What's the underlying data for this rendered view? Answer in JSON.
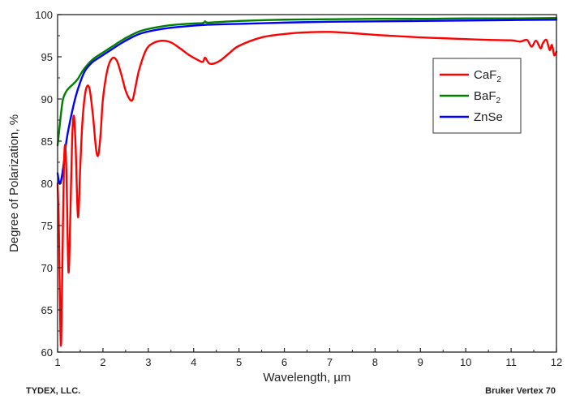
{
  "chart_data": {
    "type": "line",
    "xlabel": "Wavelength, µm",
    "ylabel": "Degree of Polarization, %",
    "xlim": [
      1,
      12
    ],
    "ylim": [
      60,
      100
    ],
    "xticks": [
      1,
      2,
      3,
      4,
      5,
      6,
      7,
      8,
      9,
      10,
      11,
      12
    ],
    "yticks": [
      60,
      65,
      70,
      75,
      80,
      85,
      90,
      95,
      100
    ],
    "grid": false,
    "legend_position": "right",
    "series": [
      {
        "name": "CaF₂",
        "legend_base": "CaF",
        "legend_sub": "2",
        "color": "#ff0000",
        "x": [
          1.0,
          1.03,
          1.06,
          1.08,
          1.11,
          1.14,
          1.17,
          1.2,
          1.24,
          1.28,
          1.32,
          1.36,
          1.4,
          1.45,
          1.5,
          1.55,
          1.62,
          1.7,
          1.78,
          1.85,
          1.9,
          1.95,
          2.0,
          2.1,
          2.2,
          2.3,
          2.4,
          2.5,
          2.6,
          2.66,
          2.72,
          2.8,
          2.95,
          3.1,
          3.3,
          3.5,
          3.7,
          3.9,
          4.1,
          4.2,
          4.25,
          4.3,
          4.35,
          4.45,
          4.6,
          4.8,
          5.0,
          5.5,
          6.0,
          6.5,
          7.0,
          7.5,
          8.0,
          8.5,
          9.0,
          9.5,
          10.0,
          10.5,
          11.0,
          11.2,
          11.35,
          11.45,
          11.55,
          11.65,
          11.7,
          11.78,
          11.85,
          11.9,
          11.95,
          12.0
        ],
        "y": [
          80.0,
          74.0,
          63.0,
          61.5,
          72.0,
          82.0,
          84.5,
          80.0,
          69.5,
          76.0,
          85.0,
          88.0,
          84.0,
          76.0,
          82.0,
          87.5,
          91.0,
          91.3,
          88.0,
          84.0,
          83.4,
          86.0,
          90.0,
          93.5,
          94.8,
          94.6,
          93.0,
          91.0,
          89.9,
          90.0,
          91.5,
          93.5,
          95.8,
          96.6,
          96.9,
          96.7,
          96.0,
          95.2,
          94.6,
          94.4,
          94.9,
          94.5,
          94.2,
          94.2,
          94.6,
          95.5,
          96.3,
          97.3,
          97.7,
          97.9,
          97.95,
          97.8,
          97.6,
          97.45,
          97.3,
          97.2,
          97.1,
          97.0,
          96.95,
          96.8,
          97.0,
          96.2,
          96.9,
          96.0,
          96.6,
          97.0,
          95.8,
          96.4,
          95.2,
          95.6
        ]
      },
      {
        "name": "BaF₂",
        "legend_base": "BaF",
        "legend_sub": "2",
        "color": "#008000",
        "x": [
          1.0,
          1.04,
          1.08,
          1.12,
          1.18,
          1.25,
          1.35,
          1.45,
          1.55,
          1.65,
          1.8,
          2.0,
          2.2,
          2.4,
          2.6,
          2.8,
          3.0,
          3.3,
          3.6,
          4.0,
          4.2,
          4.25,
          4.3,
          4.5,
          5.0,
          6.0,
          7.0,
          8.0,
          9.0,
          10.0,
          11.0,
          12.0
        ],
        "y": [
          84.5,
          86.5,
          88.5,
          90.0,
          90.8,
          91.3,
          91.8,
          92.4,
          93.3,
          94.0,
          94.8,
          95.5,
          96.2,
          96.9,
          97.5,
          98.0,
          98.3,
          98.6,
          98.8,
          98.95,
          99.0,
          99.2,
          99.05,
          99.1,
          99.25,
          99.4,
          99.45,
          99.5,
          99.5,
          99.55,
          99.55,
          99.6
        ]
      },
      {
        "name": "ZnSe",
        "legend_base": "ZnSe",
        "legend_sub": "",
        "color": "#0000ff",
        "x": [
          1.0,
          1.03,
          1.06,
          1.1,
          1.15,
          1.2,
          1.3,
          1.4,
          1.5,
          1.6,
          1.7,
          1.8,
          2.0,
          2.2,
          2.4,
          2.6,
          2.8,
          3.0,
          3.3,
          3.6,
          4.0,
          4.3,
          4.6,
          5.0,
          6.0,
          7.0,
          8.0,
          9.0,
          10.0,
          11.0,
          12.0
        ],
        "y": [
          81.2,
          80.2,
          80.0,
          81.0,
          83.0,
          85.2,
          88.0,
          90.3,
          92.0,
          93.3,
          94.0,
          94.5,
          95.2,
          95.9,
          96.6,
          97.2,
          97.7,
          98.0,
          98.3,
          98.5,
          98.7,
          98.8,
          98.85,
          98.9,
          99.05,
          99.15,
          99.2,
          99.25,
          99.3,
          99.35,
          99.4
        ]
      }
    ]
  },
  "footer": {
    "left": "TYDEX, LLC.",
    "right": "Bruker Vertex 70"
  }
}
